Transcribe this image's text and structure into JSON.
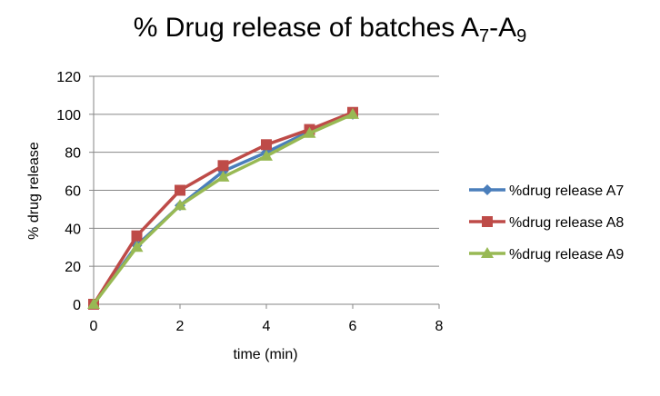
{
  "chart_data": {
    "type": "line",
    "title": {
      "main": "% Drug release of batches A",
      "sub1": "7",
      "dash": "-A",
      "sub2": "9"
    },
    "xlabel": "time (min)",
    "ylabel": "% drug release",
    "xlim": [
      0,
      8
    ],
    "ylim": [
      0,
      120
    ],
    "x_ticks": [
      0,
      2,
      4,
      6,
      8
    ],
    "y_ticks": [
      0,
      20,
      40,
      60,
      80,
      100,
      120
    ],
    "grid": "horizontal",
    "legend_position": "right",
    "x": [
      0,
      1,
      2,
      3,
      4,
      5,
      6
    ],
    "series": [
      {
        "name": "%drug release A7",
        "color": "#4a7ebb",
        "marker": "diamond",
        "values": [
          0,
          31,
          52,
          70,
          80,
          91,
          100
        ]
      },
      {
        "name": "%drug release A8",
        "color": "#be4b48",
        "marker": "square",
        "values": [
          0,
          36,
          60,
          73,
          84,
          92,
          101
        ]
      },
      {
        "name": "%drug release A9",
        "color": "#98b954",
        "marker": "triangle",
        "values": [
          0,
          30,
          52,
          67,
          78,
          90,
          100
        ]
      }
    ]
  }
}
